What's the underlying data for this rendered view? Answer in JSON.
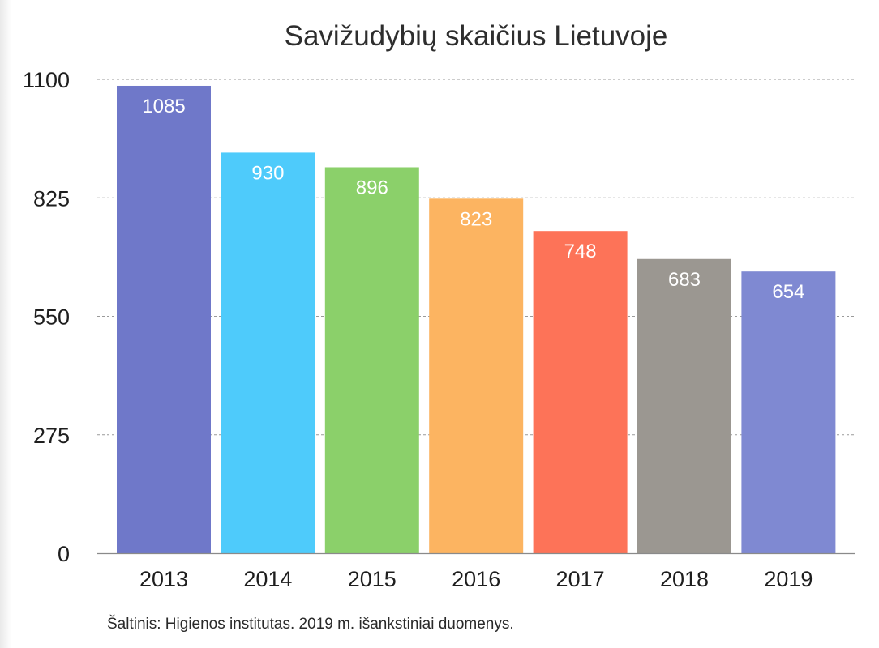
{
  "chart_data": {
    "type": "bar",
    "title": "Savižudybių skaičius Lietuvoje",
    "xlabel": "",
    "ylabel": "",
    "categories": [
      "2013",
      "2014",
      "2015",
      "2016",
      "2017",
      "2018",
      "2019"
    ],
    "values": [
      1085,
      930,
      896,
      823,
      748,
      683,
      654
    ],
    "data_labels": [
      "1085",
      "930",
      "896",
      "823",
      "748",
      "683",
      "654"
    ],
    "ylim": [
      0,
      1100
    ],
    "yticks": [
      0,
      275,
      550,
      825,
      1100
    ],
    "ytick_labels": [
      "0",
      "275",
      "550",
      "825",
      "1100"
    ],
    "grid": true,
    "legend": "none",
    "bar_colors": [
      "#6f78c9",
      "#4ecbfb",
      "#8bd06a",
      "#fcb461",
      "#fd7358",
      "#9b9791",
      "#7f89d2"
    ],
    "source": "Šaltinis: Higienos institutas. 2019 m. išankstiniai duomenys."
  }
}
